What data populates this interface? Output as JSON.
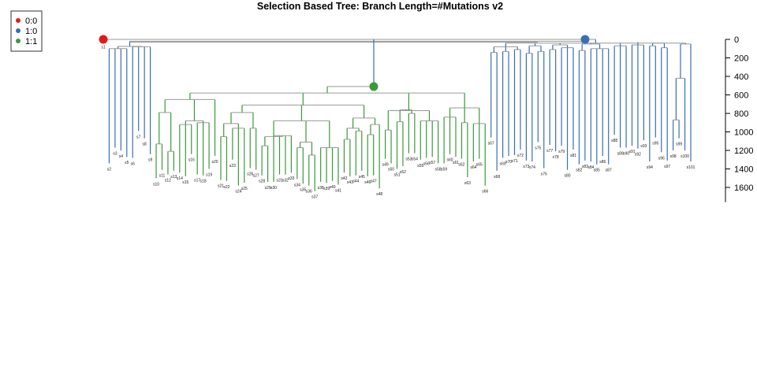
{
  "chart_data": {
    "type": "dendrogram",
    "title": "Selection Based Tree: Branch Length=#Mutations v2",
    "y_axis": {
      "ticks": [
        0,
        200,
        400,
        600,
        800,
        1000,
        1200,
        1400,
        1600
      ],
      "ylim": [
        0,
        1760
      ],
      "reversed": true,
      "position": "right"
    },
    "legend": {
      "placement": "top-left",
      "entries": [
        {
          "label": "0:0",
          "color": "#e31a1c"
        },
        {
          "label": "1:0",
          "color": "#3a6fb0"
        },
        {
          "label": "1:1",
          "color": "#3a9a3a"
        }
      ]
    },
    "colors": {
      "state_1_0": "#3a6fb0",
      "state_1_1": "#3a9a3a",
      "connector": "#999999"
    },
    "leaves": [
      {
        "label": "s1",
        "depth": 20
      },
      {
        "label": "s2",
        "depth": 1340
      },
      {
        "label": "s3",
        "depth": 1170
      },
      {
        "label": "s4",
        "depth": 1200
      },
      {
        "label": "s5",
        "depth": 1270
      },
      {
        "label": "s6",
        "depth": 1280
      },
      {
        "label": "s7",
        "depth": 990
      },
      {
        "label": "s8",
        "depth": 1070
      },
      {
        "label": "s9",
        "depth": 1240
      },
      {
        "label": "s10",
        "depth": 1500
      },
      {
        "label": "s11",
        "depth": 1410
      },
      {
        "label": "s12",
        "depth": 1460
      },
      {
        "label": "s13",
        "depth": 1420
      },
      {
        "label": "s14",
        "depth": 1440
      },
      {
        "label": "s15",
        "depth": 1480
      },
      {
        "label": "s16",
        "depth": 1240
      },
      {
        "label": "s17",
        "depth": 1460
      },
      {
        "label": "s18",
        "depth": 1470
      },
      {
        "label": "s19",
        "depth": 1400
      },
      {
        "label": "s20",
        "depth": 1260
      },
      {
        "label": "s21",
        "depth": 1520
      },
      {
        "label": "s22",
        "depth": 1530
      },
      {
        "label": "s23",
        "depth": 1300
      },
      {
        "label": "s24",
        "depth": 1580
      },
      {
        "label": "s25",
        "depth": 1550
      },
      {
        "label": "s26",
        "depth": 1390
      },
      {
        "label": "s27",
        "depth": 1410
      },
      {
        "label": "s28",
        "depth": 1470
      },
      {
        "label": "s29",
        "depth": 1540
      },
      {
        "label": "s30",
        "depth": 1540
      },
      {
        "label": "s31",
        "depth": 1460
      },
      {
        "label": "s32",
        "depth": 1460
      },
      {
        "label": "s33",
        "depth": 1440
      },
      {
        "label": "s34",
        "depth": 1510
      },
      {
        "label": "s35",
        "depth": 1560
      },
      {
        "label": "s36",
        "depth": 1580
      },
      {
        "label": "s37",
        "depth": 1640
      },
      {
        "label": "s38",
        "depth": 1540
      },
      {
        "label": "s39",
        "depth": 1550
      },
      {
        "label": "s40",
        "depth": 1530
      },
      {
        "label": "s41",
        "depth": 1570
      },
      {
        "label": "s42",
        "depth": 1440
      },
      {
        "label": "s43",
        "depth": 1480
      },
      {
        "label": "s44",
        "depth": 1470
      },
      {
        "label": "s45",
        "depth": 1420
      },
      {
        "label": "s46",
        "depth": 1480
      },
      {
        "label": "s47",
        "depth": 1470
      },
      {
        "label": "s48",
        "depth": 1610
      },
      {
        "label": "s49",
        "depth": 1290
      },
      {
        "label": "s50",
        "depth": 1340
      },
      {
        "label": "s51",
        "depth": 1400
      },
      {
        "label": "s52",
        "depth": 1370
      },
      {
        "label": "s53",
        "depth": 1230
      },
      {
        "label": "s54",
        "depth": 1230
      },
      {
        "label": "s55",
        "depth": 1300
      },
      {
        "label": "s56",
        "depth": 1280
      },
      {
        "label": "s57",
        "depth": 1270
      },
      {
        "label": "s58",
        "depth": 1340
      },
      {
        "label": "s59",
        "depth": 1340
      },
      {
        "label": "s60",
        "depth": 1240
      },
      {
        "label": "s61",
        "depth": 1270
      },
      {
        "label": "s62",
        "depth": 1290
      },
      {
        "label": "s63",
        "depth": 1490
      },
      {
        "label": "s64",
        "depth": 1320
      },
      {
        "label": "s65",
        "depth": 1290
      },
      {
        "label": "s66",
        "depth": 1580
      },
      {
        "label": "s67",
        "depth": 1060
      },
      {
        "label": "s68",
        "depth": 1420
      },
      {
        "label": "s69",
        "depth": 1280
      },
      {
        "label": "s70",
        "depth": 1260
      },
      {
        "label": "s71",
        "depth": 1250
      },
      {
        "label": "s72",
        "depth": 1190
      },
      {
        "label": "s73",
        "depth": 1310
      },
      {
        "label": "s74",
        "depth": 1320
      },
      {
        "label": "s75",
        "depth": 1110
      },
      {
        "label": "s76",
        "depth": 1390
      },
      {
        "label": "s77",
        "depth": 1140
      },
      {
        "label": "s78",
        "depth": 1210
      },
      {
        "label": "s79",
        "depth": 1150
      },
      {
        "label": "s80",
        "depth": 1410
      },
      {
        "label": "s81",
        "depth": 1190
      },
      {
        "label": "s82",
        "depth": 1350
      },
      {
        "label": "s83",
        "depth": 1310
      },
      {
        "label": "s84",
        "depth": 1320
      },
      {
        "label": "s85",
        "depth": 1350
      },
      {
        "label": "s86",
        "depth": 1260
      },
      {
        "label": "s87",
        "depth": 1350
      },
      {
        "label": "s88",
        "depth": 1030
      },
      {
        "label": "s89",
        "depth": 1170
      },
      {
        "label": "s90",
        "depth": 1170
      },
      {
        "label": "s91",
        "depth": 1150
      },
      {
        "label": "s92",
        "depth": 1180
      },
      {
        "label": "s93",
        "depth": 1090
      },
      {
        "label": "s94",
        "depth": 1320
      },
      {
        "label": "s95",
        "depth": 1060
      },
      {
        "label": "s96",
        "depth": 1220
      },
      {
        "label": "s97",
        "depth": 1310
      },
      {
        "label": "s98",
        "depth": 1200
      },
      {
        "label": "s99",
        "depth": 1070
      },
      {
        "label": "s100",
        "depth": 1200
      },
      {
        "label": "s101",
        "depth": 1320
      }
    ],
    "state_nodes": [
      {
        "state": "0:0",
        "leaf_label": "s1",
        "depth": 0
      },
      {
        "state": "1:0",
        "between": [
          "s91",
          "s92"
        ],
        "depth": 0
      },
      {
        "state": "1:1",
        "between": [
          "s37",
          "s38"
        ],
        "depth": 510
      }
    ]
  }
}
